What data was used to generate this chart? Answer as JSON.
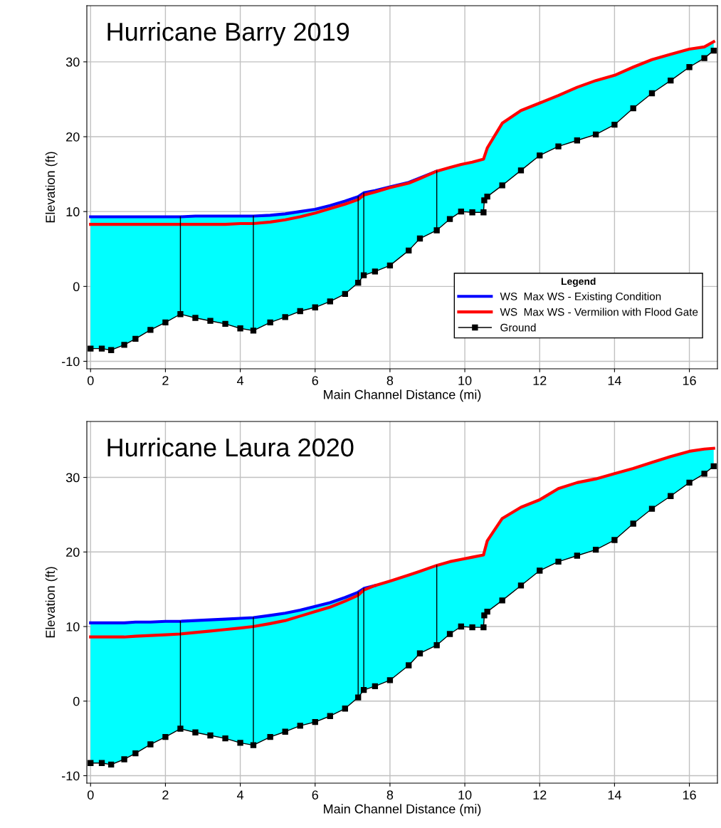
{
  "chart_data": [
    {
      "type": "line",
      "title": "Hurricane Barry 2019",
      "xlabel": "Main Channel Distance (mi)",
      "ylabel": "Elevation (ft)",
      "xlim": [
        -0.1,
        16.75
      ],
      "ylim": [
        -11,
        37.5
      ],
      "xticks": [
        0,
        2,
        4,
        6,
        8,
        10,
        12,
        14,
        16
      ],
      "yticks": [
        -10,
        0,
        10,
        20,
        30
      ],
      "grid": true,
      "legend": "bottom right",
      "legend_title": "Legend",
      "x": [
        0,
        0.3,
        0.55,
        0.9,
        1.2,
        1.6,
        2.0,
        2.4,
        2.8,
        3.2,
        3.6,
        4.0,
        4.35,
        4.8,
        5.2,
        5.6,
        6.0,
        6.4,
        6.8,
        7.15,
        7.3,
        7.6,
        8.0,
        8.5,
        8.8,
        9.25,
        9.6,
        9.9,
        10.2,
        10.5,
        10.52,
        10.6,
        11.0,
        11.5,
        12.0,
        12.5,
        13.0,
        13.5,
        14.0,
        14.5,
        15.0,
        15.5,
        16.0,
        16.4,
        16.65
      ],
      "series": [
        {
          "name": "WS  Max WS - Existing Condition",
          "color": "#0000ff",
          "values": [
            9.3,
            9.3,
            9.3,
            9.3,
            9.3,
            9.3,
            9.3,
            9.3,
            9.4,
            9.4,
            9.4,
            9.4,
            9.4,
            9.5,
            9.7,
            10.0,
            10.3,
            10.8,
            11.4,
            12.0,
            12.5,
            12.8,
            13.3,
            13.9,
            14.5,
            15.4,
            null,
            null,
            null,
            null,
            null,
            null,
            null,
            null,
            null,
            null,
            null,
            null,
            null,
            null,
            null,
            null,
            null,
            null,
            null
          ],
          "upper": [
            9.3,
            9.3,
            9.3,
            9.3,
            9.3,
            9.3,
            9.3,
            9.3,
            9.4,
            9.4,
            9.4,
            9.4,
            9.4,
            9.5,
            9.7,
            10.0,
            10.3,
            10.8,
            11.4,
            12.0,
            12.5,
            12.8,
            13.3,
            13.9,
            14.5,
            15.4,
            15.9,
            16.3,
            16.6,
            17.0,
            17.3,
            18.5,
            21.8,
            23.5,
            24.5,
            25.5,
            26.6,
            27.5,
            28.2,
            29.3,
            30.3,
            31.0,
            31.7,
            32.0,
            32.7
          ],
          "lower": [
            -8.3,
            -8.3,
            -8.5,
            -7.8,
            -7.0,
            -5.8,
            -4.8,
            -3.7,
            -4.2,
            -4.6,
            -5.0,
            -5.6,
            -5.9,
            -4.8,
            -4.1,
            -3.3,
            -2.8,
            -2.0,
            -1.0,
            0.5,
            1.5,
            2.0,
            2.8,
            4.8,
            6.4,
            7.5,
            9.0,
            10.0,
            9.9,
            9.9,
            11.5,
            12.0,
            13.5,
            15.5,
            17.5,
            18.7,
            19.5,
            20.3,
            21.6,
            23.8,
            25.8,
            27.5,
            29.3,
            30.5,
            31.5
          ]
        },
        {
          "name": "WS  Max WS - Vermilion with Flood Gate",
          "color": "#ff0000",
          "values": [
            8.3,
            8.3,
            8.3,
            8.3,
            8.3,
            8.3,
            8.3,
            8.3,
            8.3,
            8.3,
            8.3,
            8.4,
            8.4,
            8.6,
            8.9,
            9.3,
            9.8,
            10.4,
            11.0,
            11.6,
            12.2,
            12.6,
            13.2,
            13.8,
            14.4,
            15.4,
            15.9,
            16.3,
            16.6,
            17.0,
            17.3,
            18.5,
            21.8,
            23.5,
            24.5,
            25.5,
            26.6,
            27.5,
            28.2,
            29.3,
            30.3,
            31.0,
            31.7,
            32.0,
            32.7
          ]
        },
        {
          "name": "Ground",
          "color": "#000000",
          "marker": "square",
          "values": [
            -8.3,
            -8.3,
            -8.5,
            -7.8,
            -7.0,
            -5.8,
            -4.8,
            -3.7,
            -4.2,
            -4.6,
            -5.0,
            -5.6,
            -5.9,
            -4.8,
            -4.1,
            -3.3,
            -2.8,
            -2.0,
            -1.0,
            0.5,
            1.5,
            2.0,
            2.8,
            4.8,
            6.4,
            7.5,
            9.0,
            10.0,
            9.9,
            9.9,
            11.5,
            12.0,
            13.5,
            15.5,
            17.5,
            18.7,
            19.5,
            20.3,
            21.6,
            23.8,
            25.8,
            27.5,
            29.3,
            30.5,
            31.5
          ]
        },
        {
          "color": "#000000",
          "x": [
            2.4,
            2.4
          ],
          "values": [
            -3.7,
            9.3
          ]
        },
        {
          "color": "#000000",
          "x": [
            4.35,
            4.35
          ],
          "values": [
            -5.9,
            9.4
          ]
        },
        {
          "color": "#000000",
          "x": [
            7.15,
            7.15
          ],
          "values": [
            0.5,
            12.0
          ]
        },
        {
          "color": "#000000",
          "x": [
            7.3,
            7.3
          ],
          "values": [
            1.5,
            12.5
          ]
        },
        {
          "color": "#000000",
          "x": [
            9.25,
            9.25
          ],
          "values": [
            7.5,
            15.4
          ]
        }
      ]
    },
    {
      "type": "line",
      "title": "Hurricane Laura 2020",
      "xlabel": "Main Channel Distance (mi)",
      "ylabel": "Elevation (ft)",
      "xlim": [
        -0.1,
        16.75
      ],
      "ylim": [
        -11,
        37.5
      ],
      "xticks": [
        0,
        2,
        4,
        6,
        8,
        10,
        12,
        14,
        16
      ],
      "yticks": [
        -10,
        0,
        10,
        20,
        30
      ],
      "grid": true,
      "x": [
        0,
        0.3,
        0.55,
        0.9,
        1.2,
        1.6,
        2.0,
        2.4,
        2.8,
        3.2,
        3.6,
        4.0,
        4.35,
        4.8,
        5.2,
        5.6,
        6.0,
        6.4,
        6.8,
        7.15,
        7.3,
        7.6,
        8.0,
        8.5,
        8.8,
        9.25,
        9.6,
        9.9,
        10.2,
        10.5,
        10.52,
        10.6,
        11.0,
        11.5,
        12.0,
        12.5,
        13.0,
        13.5,
        14.0,
        14.5,
        15.0,
        15.5,
        16.0,
        16.4,
        16.65
      ],
      "series": [
        {
          "color": "#0000ff",
          "values": [
            10.5,
            10.5,
            10.5,
            10.5,
            10.6,
            10.6,
            10.7,
            10.7,
            10.8,
            10.9,
            11.0,
            11.1,
            11.2,
            11.5,
            11.8,
            12.2,
            12.7,
            13.2,
            13.9,
            14.6,
            15.1,
            15.5,
            null,
            null,
            null,
            null,
            null,
            null,
            null,
            null,
            null,
            null,
            null,
            null,
            null,
            null,
            null,
            null,
            null,
            null,
            null,
            null,
            null,
            null,
            null
          ],
          "upper": [
            10.5,
            10.5,
            10.5,
            10.5,
            10.6,
            10.6,
            10.7,
            10.7,
            10.8,
            10.9,
            11.0,
            11.1,
            11.2,
            11.5,
            11.8,
            12.2,
            12.7,
            13.2,
            13.9,
            14.6,
            15.1,
            15.5,
            16.1,
            16.9,
            17.4,
            18.2,
            18.7,
            19.0,
            19.3,
            19.6,
            20.0,
            21.5,
            24.5,
            26.0,
            27.0,
            28.5,
            29.3,
            29.8,
            30.5,
            31.2,
            32.0,
            32.8,
            33.5,
            33.8,
            33.9
          ],
          "lower": [
            -8.3,
            -8.3,
            -8.5,
            -7.8,
            -7.0,
            -5.8,
            -4.8,
            -3.7,
            -4.2,
            -4.6,
            -5.0,
            -5.6,
            -5.9,
            -4.8,
            -4.1,
            -3.3,
            -2.8,
            -2.0,
            -1.0,
            0.5,
            1.5,
            2.0,
            2.8,
            4.8,
            6.4,
            7.5,
            9.0,
            10.0,
            9.9,
            9.9,
            11.5,
            12.0,
            13.5,
            15.5,
            17.5,
            18.7,
            19.5,
            20.3,
            21.6,
            23.8,
            25.8,
            27.5,
            29.3,
            30.5,
            31.5
          ]
        },
        {
          "color": "#ff0000",
          "values": [
            8.6,
            8.6,
            8.6,
            8.6,
            8.7,
            8.8,
            8.9,
            9.0,
            9.2,
            9.4,
            9.6,
            9.8,
            10.0,
            10.4,
            10.8,
            11.4,
            12.0,
            12.6,
            13.4,
            14.2,
            14.9,
            15.5,
            16.1,
            16.9,
            17.4,
            18.2,
            18.7,
            19.0,
            19.3,
            19.6,
            20.0,
            21.5,
            24.5,
            26.0,
            27.0,
            28.5,
            29.3,
            29.8,
            30.5,
            31.2,
            32.0,
            32.8,
            33.5,
            33.8,
            33.9
          ]
        },
        {
          "color": "#000000",
          "marker": "square",
          "values": [
            -8.3,
            -8.3,
            -8.5,
            -7.8,
            -7.0,
            -5.8,
            -4.8,
            -3.7,
            -4.2,
            -4.6,
            -5.0,
            -5.6,
            -5.9,
            -4.8,
            -4.1,
            -3.3,
            -2.8,
            -2.0,
            -1.0,
            0.5,
            1.5,
            2.0,
            2.8,
            4.8,
            6.4,
            7.5,
            9.0,
            10.0,
            9.9,
            9.9,
            11.5,
            12.0,
            13.5,
            15.5,
            17.5,
            18.7,
            19.5,
            20.3,
            21.6,
            23.8,
            25.8,
            27.5,
            29.3,
            30.5,
            31.5
          ]
        },
        {
          "color": "#000000",
          "x": [
            2.4,
            2.4
          ],
          "values": [
            -3.7,
            10.7
          ]
        },
        {
          "color": "#000000",
          "x": [
            4.35,
            4.35
          ],
          "values": [
            -5.9,
            11.2
          ]
        },
        {
          "color": "#000000",
          "x": [
            7.15,
            7.15
          ],
          "values": [
            0.5,
            14.6
          ]
        },
        {
          "color": "#000000",
          "x": [
            7.3,
            7.3
          ],
          "values": [
            1.5,
            15.1
          ]
        },
        {
          "color": "#000000",
          "x": [
            9.25,
            9.25
          ],
          "values": [
            7.5,
            18.2
          ]
        }
      ]
    }
  ]
}
